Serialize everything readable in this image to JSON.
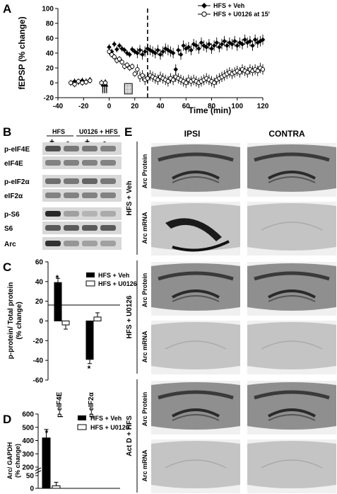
{
  "panels": {
    "A": "A",
    "B": "B",
    "C": "C",
    "D": "D",
    "E": "E"
  },
  "panelA": {
    "ylabel": "fEPSP (% change)",
    "xlabel": "Time (min)",
    "legend": [
      "HFS + Veh",
      "HFS + U0126 at 15'"
    ]
  },
  "panelB": {
    "group_hfs": "HFS",
    "group_u0126": "U0126 + HFS",
    "signs": [
      "+",
      "-",
      "+",
      "-"
    ],
    "rows": [
      "p-eIF4E",
      "eIF4E",
      "p-eIF2α",
      "eIF2α",
      "p-S6",
      "S6",
      "Arc"
    ]
  },
  "panelC": {
    "ylabel_line1": "p-protein/ Total protein",
    "ylabel_line2": "(% change)",
    "legend": [
      "HFS + Veh",
      "HFS + U0126"
    ],
    "star": "*"
  },
  "panelD": {
    "ylabel_line1": "Arc/ GAPDH",
    "ylabel_line2": "(% change)",
    "legend": [
      "HFS + Veh",
      "HFS + U0126"
    ],
    "star": "*"
  },
  "panelE": {
    "col_ipsi": "IPSI",
    "col_contra": "CONTRA",
    "groups": [
      "HFS + Veh",
      "HFS + U0126",
      "Act D + HFS"
    ],
    "row_protein": "Arc Protein",
    "row_mrna": "Arc mRNA"
  },
  "chart_data": [
    {
      "type": "scatter",
      "series": [
        {
          "name": "HFS + Veh",
          "x": [
            -30,
            -27,
            -24,
            -21,
            -18,
            -15,
            -6,
            -3,
            0,
            2,
            4,
            6,
            8,
            10,
            12,
            14,
            16,
            18,
            20,
            22,
            24,
            26,
            28,
            30,
            32,
            34,
            36,
            38,
            40,
            42,
            44,
            46,
            48,
            50,
            52,
            54,
            56,
            58,
            60,
            62,
            64,
            66,
            68,
            70,
            72,
            74,
            76,
            78,
            80,
            82,
            84,
            86,
            88,
            90,
            92,
            94,
            96,
            98,
            100,
            102,
            104,
            106,
            108,
            110,
            112,
            114,
            116,
            118,
            120
          ],
          "y": [
            0,
            2,
            1,
            3,
            2,
            4,
            0,
            1,
            48,
            42,
            52,
            45,
            50,
            46,
            44,
            40,
            38,
            45,
            42,
            40,
            44,
            38,
            42,
            46,
            44,
            42,
            40,
            44,
            38,
            42,
            46,
            44,
            42,
            40,
            18,
            44,
            38,
            50,
            46,
            48,
            44,
            52,
            50,
            46,
            54,
            50,
            48,
            52,
            46,
            50,
            54,
            48,
            52,
            56,
            50,
            54,
            52,
            56,
            50,
            54,
            52,
            58,
            54,
            56,
            50,
            58,
            54,
            56,
            58
          ],
          "marker": "filled diamond"
        },
        {
          "name": "HFS + U0126 at 15'",
          "x": [
            -30,
            -27,
            -24,
            -21,
            -18,
            -15,
            -6,
            -3,
            0,
            2,
            4,
            6,
            8,
            10,
            12,
            14,
            16,
            18,
            20,
            22,
            24,
            26,
            28,
            30,
            32,
            34,
            36,
            38,
            40,
            42,
            44,
            46,
            48,
            50,
            52,
            54,
            56,
            58,
            60,
            62,
            64,
            66,
            68,
            70,
            72,
            74,
            76,
            78,
            80,
            82,
            84,
            86,
            88,
            90,
            92,
            94,
            96,
            98,
            100,
            102,
            104,
            106,
            108,
            110,
            112,
            114,
            116,
            118,
            120
          ],
          "y": [
            0,
            -2,
            2,
            0,
            1,
            3,
            0,
            0,
            42,
            38,
            35,
            30,
            32,
            28,
            22,
            24,
            20,
            22,
            12,
            18,
            8,
            10,
            4,
            6,
            10,
            8,
            6,
            4,
            8,
            6,
            4,
            2,
            6,
            4,
            8,
            6,
            4,
            2,
            0,
            4,
            2,
            4,
            2,
            0,
            2,
            4,
            6,
            4,
            2,
            0,
            4,
            6,
            8,
            10,
            12,
            14,
            12,
            14,
            16,
            14,
            18,
            16,
            14,
            18,
            16,
            18,
            16,
            20,
            18
          ],
          "marker": "open circle"
        }
      ],
      "xlim": [
        -40,
        120
      ],
      "ylim": [
        -20,
        100
      ],
      "xticks": [
        -40,
        -20,
        0,
        20,
        40,
        60,
        80,
        100,
        120
      ],
      "yticks": [
        -20,
        0,
        20,
        40,
        60,
        80,
        100
      ],
      "annotations": [
        "arrows at -6 to -2 min",
        "dotted box 12-18 min",
        "dashed line at 30 min"
      ]
    },
    {
      "type": "bar",
      "categories": [
        "p-eIF4E",
        "p-eIF2α"
      ],
      "series": [
        {
          "name": "HFS + Veh",
          "values": [
            39,
            -39
          ]
        },
        {
          "name": "HFS + U0126",
          "values": [
            -4,
            4
          ]
        }
      ],
      "ylim": [
        -60,
        60
      ],
      "yticks": [
        -60,
        -40,
        -20,
        0,
        20,
        40,
        60
      ]
    },
    {
      "type": "bar",
      "categories": [
        ""
      ],
      "series": [
        {
          "name": "HFS + Veh",
          "values": [
            420
          ]
        },
        {
          "name": "HFS + U0126",
          "values": [
            10
          ]
        }
      ],
      "ylim": [
        0,
        600
      ],
      "yticks": [
        0,
        50,
        200,
        300,
        400,
        500,
        600
      ]
    }
  ]
}
